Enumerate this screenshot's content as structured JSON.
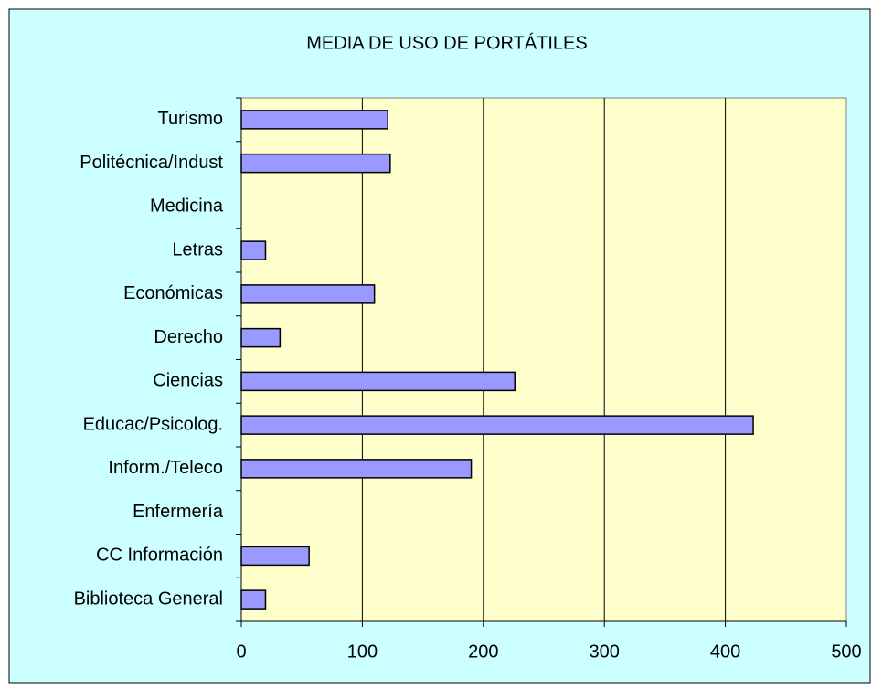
{
  "chart_data": {
    "type": "bar",
    "orientation": "horizontal",
    "title": "MEDIA DE USO DE PORTÁTILES",
    "categories": [
      "Turismo",
      "Politécnica/Indust",
      "Medicina",
      "Letras",
      "Económicas",
      "Derecho",
      "Ciencias",
      "Educac/Psicolog.",
      "Inform./Teleco",
      "Enfermería",
      "CC Información",
      "Biblioteca General"
    ],
    "values": [
      121,
      123,
      0,
      20,
      110,
      32,
      226,
      423,
      190,
      0,
      56,
      20
    ],
    "color": "#9999ff",
    "xlim": [
      0,
      500
    ],
    "xticks": [
      0,
      100,
      200,
      300,
      400,
      500
    ],
    "grid": true
  }
}
